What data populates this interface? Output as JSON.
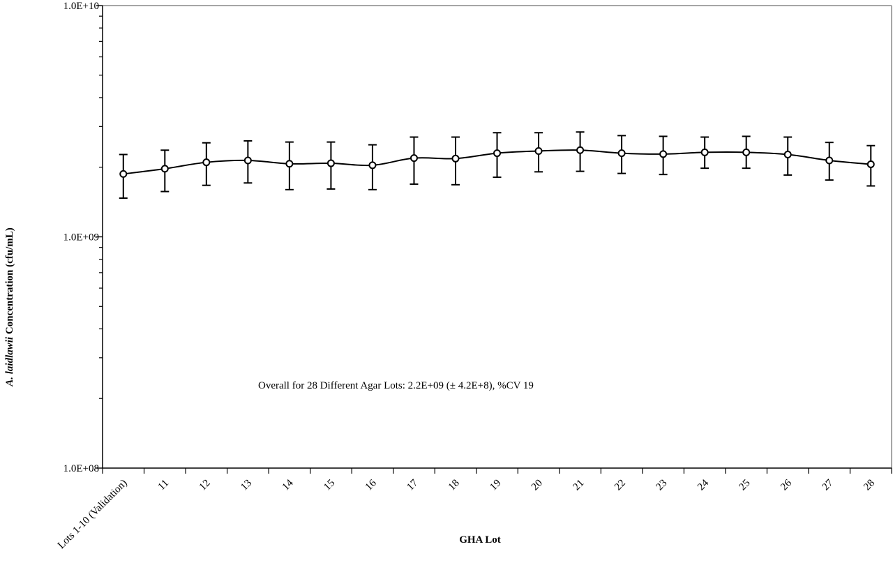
{
  "chart_data": {
    "type": "line",
    "title": "",
    "xlabel": "GHA Lot",
    "ylabel_italic": "A. laidlawii",
    "ylabel_rest": " Concentration (cfu/mL)",
    "yscale": "log",
    "ylim": [
      100000000,
      10000000000
    ],
    "yticks": [
      {
        "value": 100000000,
        "label": "1.0E+08"
      },
      {
        "value": 1000000000,
        "label": "1.0E+09"
      },
      {
        "value": 10000000000,
        "label": "1.0E+10"
      }
    ],
    "categories": [
      "Lots 1-10 (Validation)",
      "11",
      "12",
      "13",
      "14",
      "15",
      "16",
      "17",
      "18",
      "19",
      "20",
      "21",
      "22",
      "23",
      "24",
      "25",
      "26",
      "27",
      "28"
    ],
    "values": [
      1870000000.0,
      1970000000.0,
      2100000000.0,
      2140000000.0,
      2070000000.0,
      2080000000.0,
      2040000000.0,
      2190000000.0,
      2180000000.0,
      2300000000.0,
      2350000000.0,
      2370000000.0,
      2300000000.0,
      2280000000.0,
      2320000000.0,
      2320000000.0,
      2270000000.0,
      2140000000.0,
      2060000000.0
    ],
    "err_upper": [
      2270000000.0,
      2370000000.0,
      2550000000.0,
      2600000000.0,
      2570000000.0,
      2570000000.0,
      2500000000.0,
      2700000000.0,
      2700000000.0,
      2820000000.0,
      2820000000.0,
      2840000000.0,
      2740000000.0,
      2720000000.0,
      2700000000.0,
      2720000000.0,
      2700000000.0,
      2560000000.0,
      2480000000.0
    ],
    "err_lower": [
      1470000000.0,
      1570000000.0,
      1670000000.0,
      1710000000.0,
      1600000000.0,
      1610000000.0,
      1600000000.0,
      1690000000.0,
      1680000000.0,
      1810000000.0,
      1910000000.0,
      1920000000.0,
      1880000000.0,
      1860000000.0,
      1980000000.0,
      1980000000.0,
      1850000000.0,
      1760000000.0,
      1660000000.0
    ],
    "annotation": "Overall for 28 Different Agar Lots:   2.2E+09 (± 4.2E+8), %CV 19",
    "grid": false,
    "legend": "none"
  }
}
